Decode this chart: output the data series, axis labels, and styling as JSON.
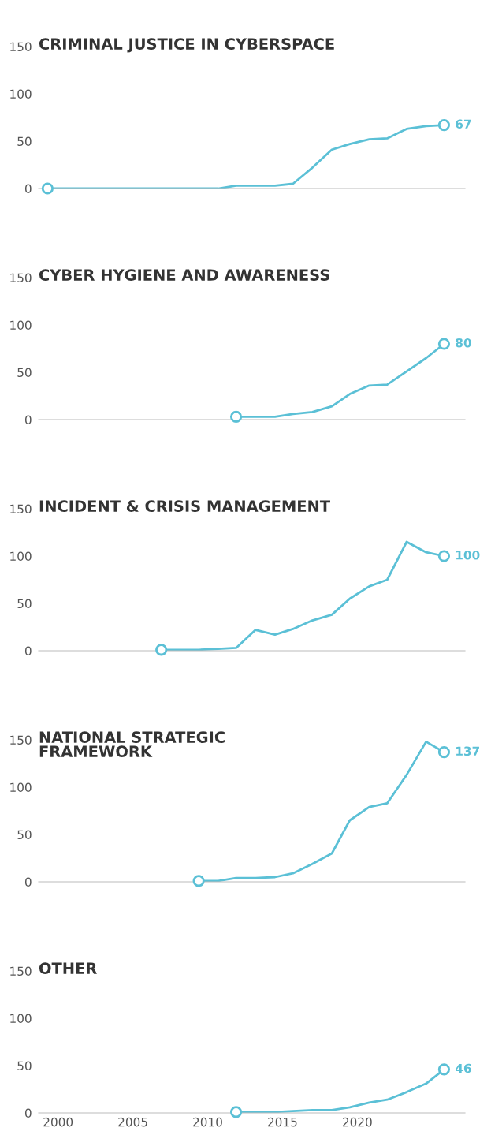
{
  "chart_data": [
    {
      "type": "line",
      "title": "CRIMINAL JUSTICE IN CYBERSPACE",
      "x": [
        1999.3,
        2000.5,
        2001.8,
        2003.1,
        2004.3,
        2005.6,
        2006.9,
        2008.1,
        2009.4,
        2010.7,
        2011.9,
        2013.2,
        2014.5,
        2015.7,
        2017.0,
        2018.3,
        2019.5,
        2020.8,
        2022.0,
        2023.3,
        2024.6,
        2025.8
      ],
      "series": [
        {
          "color": "#5bc0d6",
          "values": [
            0,
            0,
            0,
            0,
            0,
            0,
            0,
            0,
            0,
            0,
            3,
            3,
            3,
            5,
            22,
            41,
            47,
            52,
            53,
            63,
            66,
            67
          ],
          "value_labels": [
            null,
            null,
            null,
            null,
            null,
            null,
            null,
            null,
            null,
            null,
            null,
            null,
            null,
            null,
            null,
            null,
            null,
            null,
            null,
            null,
            null,
            "67"
          ]
        },
        {
          "type": "scatter",
          "marker": "circle",
          "color": "#5bc0d6",
          "x": [
            1999.3,
            2025.8
          ],
          "values": [
            0,
            67
          ]
        }
      ],
      "xlim": [
        1998.7,
        2027.2
      ],
      "xticks": [
        2000,
        2005,
        2010,
        2015,
        2020
      ],
      "ylim": [
        0,
        150
      ],
      "yticks": [
        0,
        50,
        100,
        150
      ],
      "tick_labels": "y",
      "grid": false,
      "legend": false
    },
    {
      "type": "line",
      "title": "CYBER HYGIENE AND AWARENESS",
      "x": [
        2011.9,
        2013.2,
        2014.5,
        2015.7,
        2017.0,
        2018.3,
        2019.5,
        2020.8,
        2022.0,
        2023.3,
        2024.6,
        2025.8
      ],
      "series": [
        {
          "color": "#5bc0d6",
          "values": [
            3,
            3,
            3,
            6,
            8,
            14,
            27,
            36,
            37,
            51,
            65,
            80
          ],
          "value_labels": [
            null,
            null,
            null,
            null,
            null,
            null,
            null,
            null,
            null,
            null,
            null,
            "80"
          ]
        },
        {
          "type": "scatter",
          "marker": "circle",
          "color": "#5bc0d6",
          "x": [
            2011.9,
            2025.8
          ],
          "values": [
            3,
            80
          ]
        }
      ],
      "xlim": [
        1998.7,
        2027.2
      ],
      "xticks": [
        2000,
        2005,
        2010,
        2015,
        2020
      ],
      "ylim": [
        0,
        150
      ],
      "yticks": [
        0,
        50,
        100,
        150
      ],
      "tick_labels": "y",
      "grid": false,
      "legend": false
    },
    {
      "type": "line",
      "title": "INCIDENT & CRISIS MANAGEMENT",
      "x": [
        2006.9,
        2008.1,
        2009.4,
        2010.7,
        2011.9,
        2013.2,
        2014.5,
        2015.7,
        2017.0,
        2018.3,
        2019.5,
        2020.8,
        2022.0,
        2023.3,
        2024.6,
        2025.8
      ],
      "series": [
        {
          "color": "#5bc0d6",
          "values": [
            1,
            1,
            1,
            2,
            3,
            22,
            17,
            23,
            32,
            38,
            55,
            68,
            75,
            115,
            104,
            100
          ],
          "value_labels": [
            null,
            null,
            null,
            null,
            null,
            null,
            null,
            null,
            null,
            null,
            null,
            null,
            null,
            null,
            null,
            "100"
          ]
        },
        {
          "type": "scatter",
          "marker": "circle",
          "color": "#5bc0d6",
          "x": [
            2006.9,
            2025.8
          ],
          "values": [
            1,
            100
          ]
        }
      ],
      "xlim": [
        1998.7,
        2027.2
      ],
      "xticks": [
        2000,
        2005,
        2010,
        2015,
        2020
      ],
      "ylim": [
        0,
        150
      ],
      "yticks": [
        0,
        50,
        100,
        150
      ],
      "tick_labels": "y",
      "grid": false,
      "legend": false
    },
    {
      "type": "line",
      "title": "NATIONAL STRATEGIC\nFRAMEWORK",
      "x": [
        2009.4,
        2010.7,
        2011.9,
        2013.2,
        2014.5,
        2015.7,
        2017.0,
        2018.3,
        2019.5,
        2020.8,
        2022.0,
        2023.3,
        2024.6,
        2025.8
      ],
      "series": [
        {
          "color": "#5bc0d6",
          "values": [
            1,
            1,
            4,
            4,
            5,
            9,
            19,
            30,
            65,
            79,
            83,
            113,
            148,
            137
          ],
          "value_labels": [
            null,
            null,
            null,
            null,
            null,
            null,
            null,
            null,
            null,
            null,
            null,
            null,
            null,
            "137"
          ]
        },
        {
          "type": "scatter",
          "marker": "circle",
          "color": "#5bc0d6",
          "x": [
            2009.4,
            2025.8
          ],
          "values": [
            1,
            137
          ]
        }
      ],
      "xlim": [
        1998.7,
        2027.2
      ],
      "xticks": [
        2000,
        2005,
        2010,
        2015,
        2020
      ],
      "ylim": [
        0,
        150
      ],
      "yticks": [
        0,
        50,
        100,
        150
      ],
      "tick_labels": "y",
      "grid": false,
      "legend": false
    },
    {
      "type": "line",
      "title": "OTHER",
      "x": [
        2011.9,
        2013.2,
        2014.5,
        2015.7,
        2017.0,
        2018.3,
        2019.5,
        2020.8,
        2022.0,
        2023.3,
        2024.6,
        2025.8
      ],
      "series": [
        {
          "color": "#5bc0d6",
          "values": [
            1,
            1,
            1,
            2,
            3,
            3,
            6,
            11,
            14,
            22,
            31,
            46
          ],
          "value_labels": [
            null,
            null,
            null,
            null,
            null,
            null,
            null,
            null,
            null,
            null,
            null,
            "46"
          ]
        },
        {
          "type": "scatter",
          "marker": "circle",
          "color": "#5bc0d6",
          "x": [
            2011.9,
            2025.8
          ],
          "values": [
            1,
            46
          ]
        }
      ],
      "xlim": [
        1998.7,
        2027.2
      ],
      "xticks": [
        2000,
        2005,
        2010,
        2015,
        2020
      ],
      "ylim": [
        0,
        150
      ],
      "yticks": [
        0,
        50,
        100,
        150
      ],
      "grid": false,
      "legend": false
    }
  ]
}
